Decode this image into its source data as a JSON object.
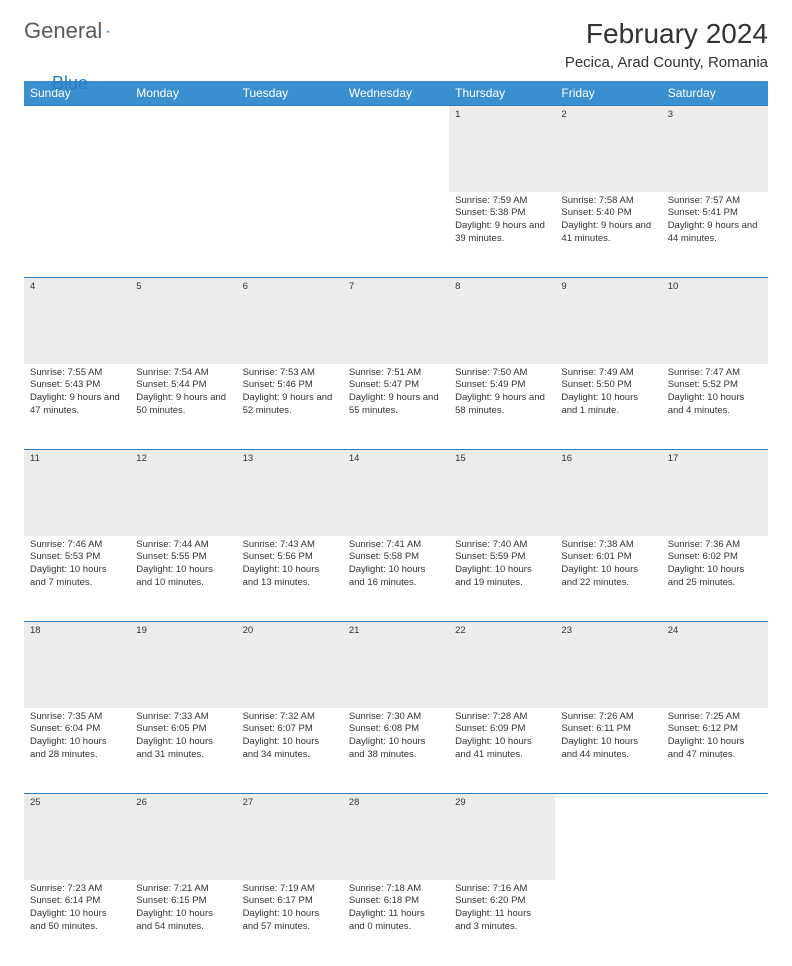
{
  "logo": {
    "part1": "General",
    "part2": "Blue"
  },
  "title": "February 2024",
  "location": "Pecica, Arad County, Romania",
  "colors": {
    "header_bg": "#3b8fcf",
    "header_text": "#ffffff",
    "border": "#2b7bbd",
    "daynum_bg": "#ececec",
    "text": "#333333",
    "logo_gray": "#5a5a5a",
    "logo_blue": "#2b7bbd"
  },
  "days_of_week": [
    "Sunday",
    "Monday",
    "Tuesday",
    "Wednesday",
    "Thursday",
    "Friday",
    "Saturday"
  ],
  "weeks": [
    [
      null,
      null,
      null,
      null,
      {
        "n": "1",
        "sr": "7:59 AM",
        "ss": "5:38 PM",
        "dl": "9 hours and 39 minutes."
      },
      {
        "n": "2",
        "sr": "7:58 AM",
        "ss": "5:40 PM",
        "dl": "9 hours and 41 minutes."
      },
      {
        "n": "3",
        "sr": "7:57 AM",
        "ss": "5:41 PM",
        "dl": "9 hours and 44 minutes."
      }
    ],
    [
      {
        "n": "4",
        "sr": "7:55 AM",
        "ss": "5:43 PM",
        "dl": "9 hours and 47 minutes."
      },
      {
        "n": "5",
        "sr": "7:54 AM",
        "ss": "5:44 PM",
        "dl": "9 hours and 50 minutes."
      },
      {
        "n": "6",
        "sr": "7:53 AM",
        "ss": "5:46 PM",
        "dl": "9 hours and 52 minutes."
      },
      {
        "n": "7",
        "sr": "7:51 AM",
        "ss": "5:47 PM",
        "dl": "9 hours and 55 minutes."
      },
      {
        "n": "8",
        "sr": "7:50 AM",
        "ss": "5:49 PM",
        "dl": "9 hours and 58 minutes."
      },
      {
        "n": "9",
        "sr": "7:49 AM",
        "ss": "5:50 PM",
        "dl": "10 hours and 1 minute."
      },
      {
        "n": "10",
        "sr": "7:47 AM",
        "ss": "5:52 PM",
        "dl": "10 hours and 4 minutes."
      }
    ],
    [
      {
        "n": "11",
        "sr": "7:46 AM",
        "ss": "5:53 PM",
        "dl": "10 hours and 7 minutes."
      },
      {
        "n": "12",
        "sr": "7:44 AM",
        "ss": "5:55 PM",
        "dl": "10 hours and 10 minutes."
      },
      {
        "n": "13",
        "sr": "7:43 AM",
        "ss": "5:56 PM",
        "dl": "10 hours and 13 minutes."
      },
      {
        "n": "14",
        "sr": "7:41 AM",
        "ss": "5:58 PM",
        "dl": "10 hours and 16 minutes."
      },
      {
        "n": "15",
        "sr": "7:40 AM",
        "ss": "5:59 PM",
        "dl": "10 hours and 19 minutes."
      },
      {
        "n": "16",
        "sr": "7:38 AM",
        "ss": "6:01 PM",
        "dl": "10 hours and 22 minutes."
      },
      {
        "n": "17",
        "sr": "7:36 AM",
        "ss": "6:02 PM",
        "dl": "10 hours and 25 minutes."
      }
    ],
    [
      {
        "n": "18",
        "sr": "7:35 AM",
        "ss": "6:04 PM",
        "dl": "10 hours and 28 minutes."
      },
      {
        "n": "19",
        "sr": "7:33 AM",
        "ss": "6:05 PM",
        "dl": "10 hours and 31 minutes."
      },
      {
        "n": "20",
        "sr": "7:32 AM",
        "ss": "6:07 PM",
        "dl": "10 hours and 34 minutes."
      },
      {
        "n": "21",
        "sr": "7:30 AM",
        "ss": "6:08 PM",
        "dl": "10 hours and 38 minutes."
      },
      {
        "n": "22",
        "sr": "7:28 AM",
        "ss": "6:09 PM",
        "dl": "10 hours and 41 minutes."
      },
      {
        "n": "23",
        "sr": "7:26 AM",
        "ss": "6:11 PM",
        "dl": "10 hours and 44 minutes."
      },
      {
        "n": "24",
        "sr": "7:25 AM",
        "ss": "6:12 PM",
        "dl": "10 hours and 47 minutes."
      }
    ],
    [
      {
        "n": "25",
        "sr": "7:23 AM",
        "ss": "6:14 PM",
        "dl": "10 hours and 50 minutes."
      },
      {
        "n": "26",
        "sr": "7:21 AM",
        "ss": "6:15 PM",
        "dl": "10 hours and 54 minutes."
      },
      {
        "n": "27",
        "sr": "7:19 AM",
        "ss": "6:17 PM",
        "dl": "10 hours and 57 minutes."
      },
      {
        "n": "28",
        "sr": "7:18 AM",
        "ss": "6:18 PM",
        "dl": "11 hours and 0 minutes."
      },
      {
        "n": "29",
        "sr": "7:16 AM",
        "ss": "6:20 PM",
        "dl": "11 hours and 3 minutes."
      },
      null,
      null
    ]
  ],
  "labels": {
    "sunrise": "Sunrise:",
    "sunset": "Sunset:",
    "daylight": "Daylight:"
  }
}
